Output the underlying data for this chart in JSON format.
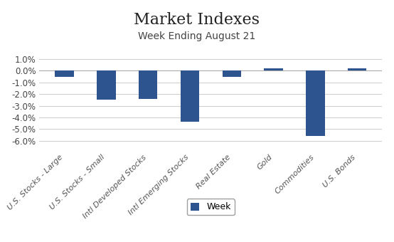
{
  "title": "Market Indexes",
  "subtitle": "Week Ending August 21",
  "categories": [
    "U.S. Stocks - Large",
    "U.S. Stocks - Small",
    "Intl Developed Stocks",
    "Intl Emerging Stocks",
    "Real Estate",
    "Gold",
    "Commodities",
    "U.S. Bonds"
  ],
  "values": [
    -0.005,
    -0.025,
    -0.024,
    -0.044,
    -0.005,
    0.002,
    -0.056,
    0.002
  ],
  "bar_color": "#2E5490",
  "ylim": [
    -0.068,
    0.015
  ],
  "yticks": [
    0.01,
    0.0,
    -0.01,
    -0.02,
    -0.03,
    -0.04,
    -0.05,
    -0.06
  ],
  "legend_label": "Week",
  "background_color": "#ffffff",
  "title_fontsize": 16,
  "subtitle_fontsize": 10
}
